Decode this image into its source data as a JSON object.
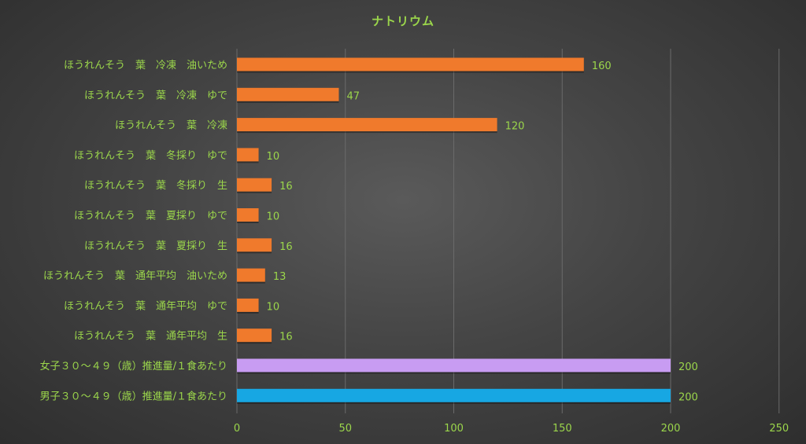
{
  "chart_data": {
    "type": "bar",
    "orientation": "horizontal",
    "title": "ナトリウム",
    "categories": [
      "ほうれんそう　葉　冷凍　油いため",
      "ほうれんそう　葉　冷凍　ゆで",
      "ほうれんそう　葉　冷凍",
      "ほうれんそう　葉　冬採り　ゆで",
      "ほうれんそう　葉　冬採り　生",
      "ほうれんそう　葉　夏採り　ゆで",
      "ほうれんそう　葉　夏採り　生",
      "ほうれんそう　葉　通年平均　油いため",
      "ほうれんそう　葉　通年平均　ゆで",
      "ほうれんそう　葉　通年平均　生",
      "女子３０～４９（歳）推進量/１食あたり",
      "男子３０～４９（歳）推進量/１食あたり"
    ],
    "values": [
      160,
      47,
      120,
      10,
      16,
      10,
      16,
      13,
      10,
      16,
      200,
      200
    ],
    "value_labels": [
      "160",
      "47",
      "120",
      "10",
      "16",
      "10",
      "16",
      "13",
      "10",
      "16",
      "200",
      "200"
    ],
    "bar_colors": [
      "#f07a2c",
      "#f07a2c",
      "#f07a2c",
      "#f07a2c",
      "#f07a2c",
      "#f07a2c",
      "#f07a2c",
      "#f07a2c",
      "#f07a2c",
      "#f07a2c",
      "#c89cf2",
      "#17a7e3"
    ],
    "xlim": [
      0,
      250
    ],
    "x_ticks": [
      "0",
      "50",
      "100",
      "150",
      "200",
      "250"
    ],
    "grid": true,
    "legend": "none"
  },
  "colors": {
    "text": "#9bd64b",
    "grid": "#6a6a6a"
  }
}
